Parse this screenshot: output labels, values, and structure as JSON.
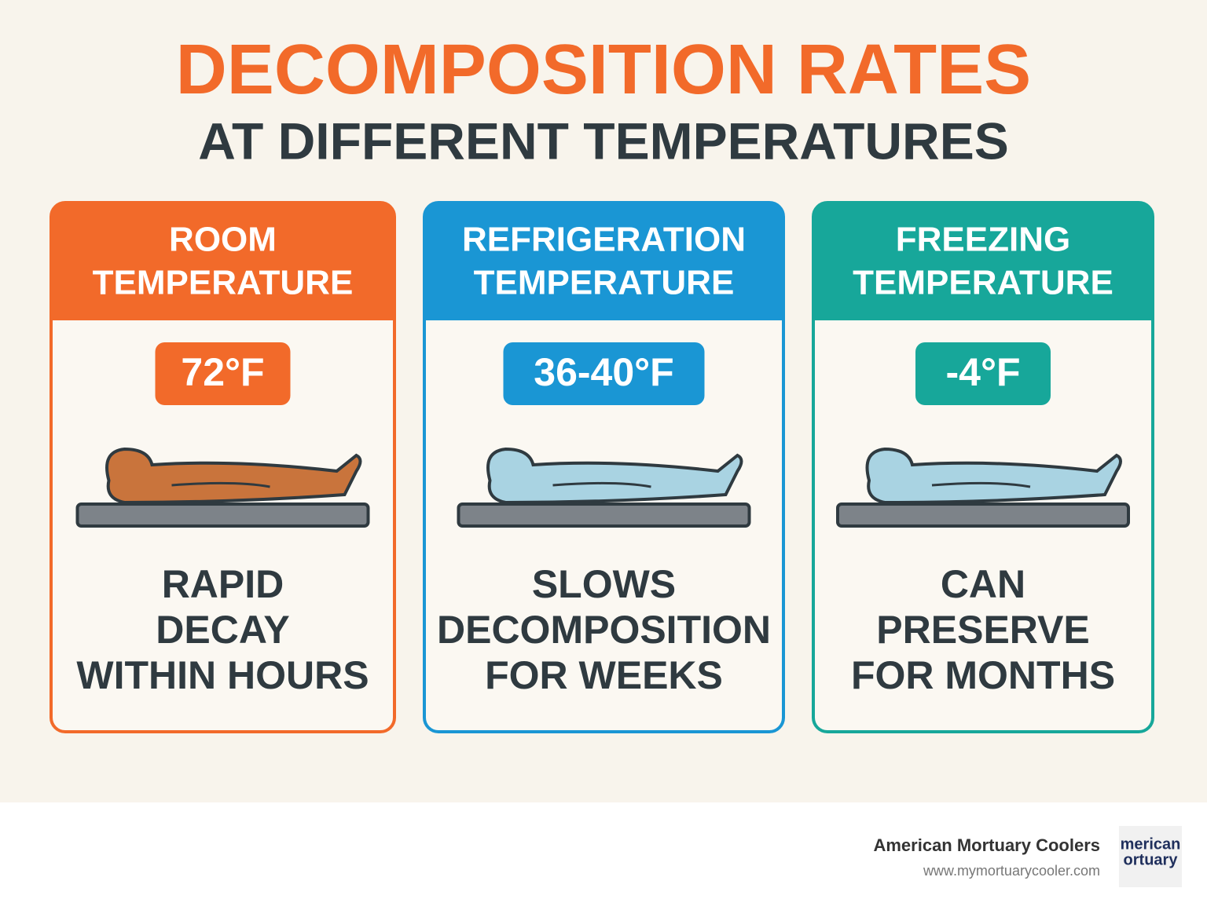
{
  "header": {
    "title": "DECOMPOSITION RATES",
    "subtitle": "AT DIFFERENT TEMPERATURES"
  },
  "cards": [
    {
      "heading": [
        "ROOM",
        "TEMPERATURE"
      ],
      "temperature": "72°F",
      "description": [
        "RAPID",
        "DECAY",
        "WITHIN HOURS"
      ],
      "color": "#f26a2a",
      "body_color": "#c9743c"
    },
    {
      "heading": [
        "REFRIGERATION",
        "TEMPERATURE"
      ],
      "temperature": "36-40°F",
      "description": [
        "SLOWS",
        "DECOMPOSITION",
        "FOR WEEKS"
      ],
      "color": "#1a96d4",
      "body_color": "#a9d3e2"
    },
    {
      "heading": [
        "FREEZING",
        "TEMPERATURE"
      ],
      "temperature": "-4°F",
      "description": [
        "CAN",
        "PRESERVE",
        "FOR MONTHS"
      ],
      "color": "#17a79a",
      "body_color": "#a9d3e2"
    }
  ],
  "footer": {
    "company": "American Mortuary Coolers",
    "url": "www.mymortuarycooler.com",
    "logo": [
      "merican",
      "ortuary"
    ]
  }
}
